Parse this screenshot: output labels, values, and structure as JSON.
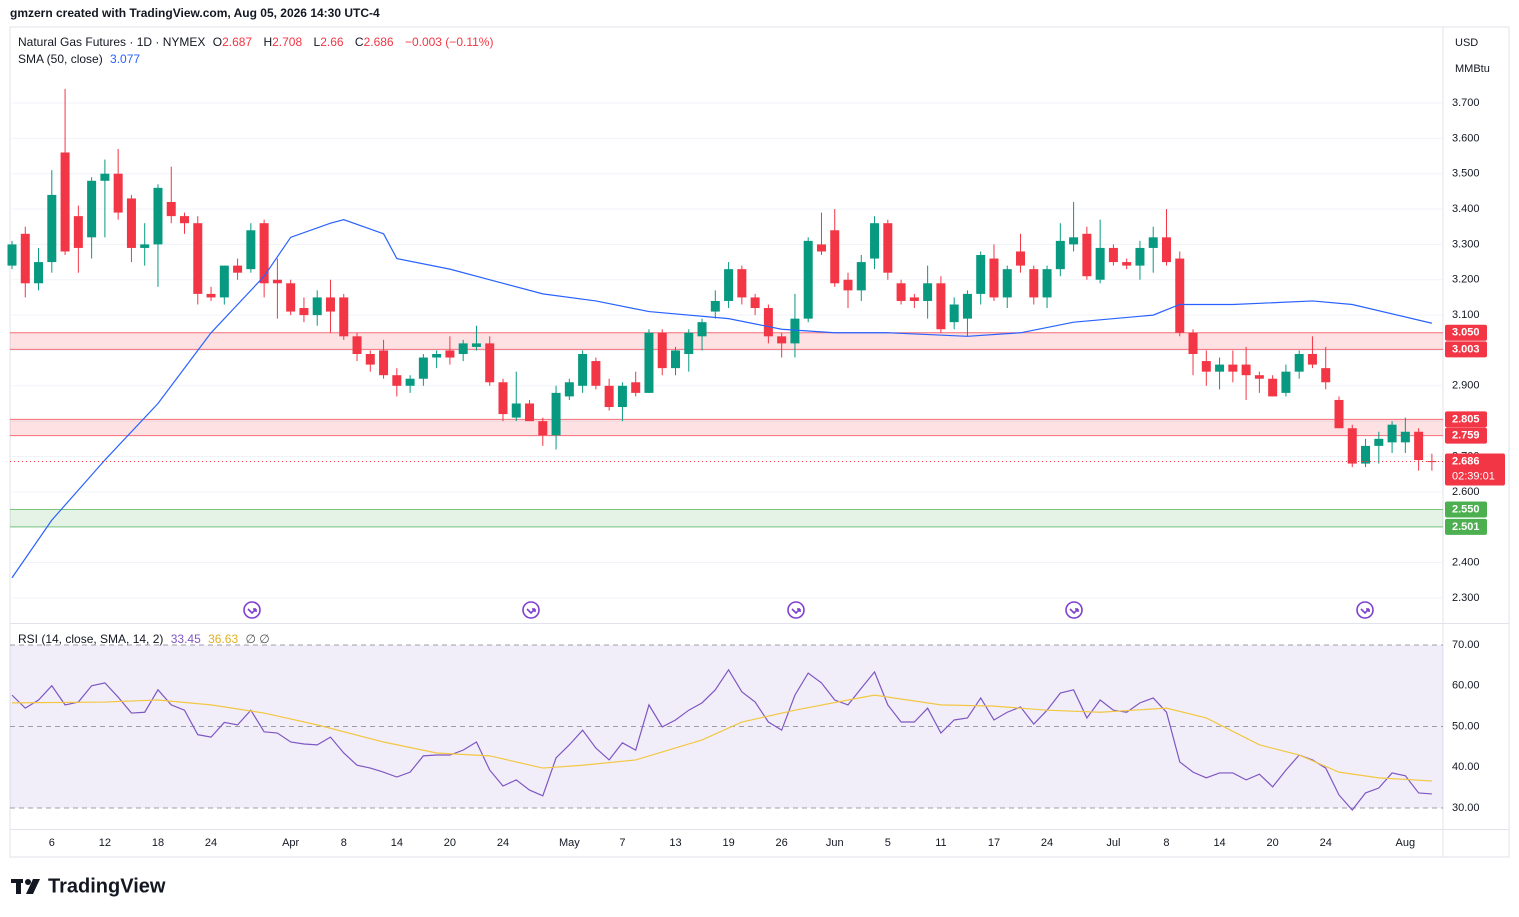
{
  "header": {
    "attribution": "gmzern created with TradingView.com, Aug 05, 2026 14:30 UTC-4",
    "logo": "TradingView"
  },
  "chart_data": [
    {
      "type": "candlestick",
      "title": "Natural Gas Futures · 1D · NYMEX",
      "legend_letters": [
        "O",
        "H",
        "L",
        "C"
      ],
      "change_label": "−0.003 (−0.11%)",
      "currency": "USD",
      "unit": "MMBtu",
      "countdown": "02:39:01",
      "up_color": "#089981",
      "down_color": "#f23645",
      "open": [
        3.24,
        3.33,
        3.19,
        3.25,
        3.56,
        3.38,
        3.32,
        3.48,
        3.5,
        3.43,
        3.29,
        3.3,
        3.42,
        3.38,
        3.36,
        3.16,
        3.15,
        3.24,
        3.23,
        3.36,
        3.2,
        3.19,
        3.12,
        3.1,
        3.15,
        3.15,
        3.04,
        2.99,
        3.0,
        2.93,
        2.9,
        2.92,
        2.98,
        3.0,
        2.99,
        3.01,
        3.02,
        2.91,
        2.81,
        2.85,
        2.8,
        2.76,
        2.87,
        2.9,
        2.97,
        2.9,
        2.84,
        2.91,
        2.88,
        3.05,
        2.95,
        2.99,
        3.04,
        3.11,
        3.14,
        3.23,
        3.15,
        3.12,
        3.04,
        3.02,
        3.09,
        3.3,
        3.34,
        3.2,
        3.17,
        3.26,
        3.36,
        3.19,
        3.15,
        3.14,
        3.19,
        3.08,
        3.09,
        3.16,
        3.26,
        3.15,
        3.28,
        3.23,
        3.15,
        3.23,
        3.3,
        3.33,
        3.2,
        3.29,
        3.25,
        3.24,
        3.29,
        3.32,
        3.26,
        3.05,
        2.97,
        2.94,
        2.96,
        2.96,
        2.93,
        2.92,
        2.88,
        2.94,
        2.99,
        2.95,
        2.86,
        2.78,
        2.68,
        2.73,
        2.74,
        2.74,
        2.77,
        2.687
      ],
      "high": [
        3.31,
        3.35,
        3.29,
        3.51,
        3.74,
        3.41,
        3.49,
        3.54,
        3.57,
        3.44,
        3.36,
        3.47,
        3.52,
        3.39,
        3.38,
        3.18,
        3.24,
        3.26,
        3.36,
        3.37,
        3.26,
        3.2,
        3.15,
        3.17,
        3.2,
        3.16,
        3.05,
        3.0,
        3.03,
        2.95,
        2.93,
        2.99,
        3.0,
        3.04,
        3.03,
        3.07,
        3.04,
        2.92,
        2.94,
        2.86,
        2.81,
        2.9,
        2.92,
        3.0,
        2.98,
        2.92,
        2.91,
        2.94,
        3.06,
        3.06,
        3.01,
        3.06,
        3.09,
        3.17,
        3.25,
        3.24,
        3.16,
        3.13,
        3.05,
        3.16,
        3.32,
        3.39,
        3.4,
        3.22,
        3.27,
        3.38,
        3.37,
        3.2,
        3.16,
        3.24,
        3.21,
        3.15,
        3.17,
        3.28,
        3.3,
        3.24,
        3.33,
        3.24,
        3.24,
        3.36,
        3.42,
        3.35,
        3.37,
        3.3,
        3.26,
        3.31,
        3.35,
        3.4,
        3.28,
        3.06,
        3.0,
        2.98,
        3.0,
        3.01,
        2.94,
        2.93,
        2.96,
        3.0,
        3.04,
        3.01,
        2.87,
        2.79,
        2.75,
        2.77,
        2.8,
        2.81,
        2.78,
        2.708
      ],
      "low": [
        3.23,
        3.15,
        3.17,
        3.22,
        3.27,
        3.22,
        3.26,
        3.32,
        3.37,
        3.25,
        3.24,
        3.18,
        3.36,
        3.33,
        3.13,
        3.14,
        3.13,
        3.2,
        3.22,
        3.15,
        3.09,
        3.1,
        3.08,
        3.07,
        3.05,
        3.03,
        2.97,
        2.94,
        2.92,
        2.87,
        2.88,
        2.9,
        2.95,
        2.96,
        2.97,
        3.0,
        2.9,
        2.8,
        2.8,
        2.8,
        2.73,
        2.72,
        2.86,
        2.88,
        2.89,
        2.83,
        2.8,
        2.87,
        2.88,
        2.93,
        2.93,
        2.94,
        3.0,
        3.09,
        3.12,
        3.13,
        3.1,
        3.02,
        2.98,
        2.98,
        3.08,
        3.27,
        3.18,
        3.12,
        3.14,
        3.23,
        3.2,
        3.13,
        3.12,
        3.09,
        3.05,
        3.06,
        3.04,
        3.13,
        3.14,
        3.12,
        3.22,
        3.13,
        3.12,
        3.21,
        3.28,
        3.2,
        3.19,
        3.24,
        3.23,
        3.2,
        3.22,
        3.24,
        3.04,
        2.93,
        2.9,
        2.89,
        2.91,
        2.86,
        2.88,
        2.87,
        2.87,
        2.92,
        2.95,
        2.89,
        2.78,
        2.67,
        2.67,
        2.68,
        2.71,
        2.71,
        2.66,
        2.66
      ],
      "close": [
        3.3,
        3.19,
        3.25,
        3.44,
        3.28,
        3.29,
        3.48,
        3.5,
        3.39,
        3.29,
        3.3,
        3.46,
        3.38,
        3.36,
        3.16,
        3.15,
        3.24,
        3.22,
        3.34,
        3.19,
        3.19,
        3.11,
        3.1,
        3.15,
        3.11,
        3.04,
        2.99,
        2.96,
        2.93,
        2.9,
        2.92,
        2.98,
        2.99,
        2.98,
        3.02,
        3.02,
        2.91,
        2.82,
        2.85,
        2.8,
        2.76,
        2.88,
        2.91,
        2.99,
        2.9,
        2.84,
        2.9,
        2.88,
        3.05,
        2.95,
        3.0,
        3.05,
        3.08,
        3.14,
        3.23,
        3.15,
        3.12,
        3.04,
        3.02,
        3.09,
        3.31,
        3.28,
        3.19,
        3.17,
        3.25,
        3.36,
        3.22,
        3.14,
        3.14,
        3.19,
        3.06,
        3.13,
        3.16,
        3.27,
        3.15,
        3.23,
        3.24,
        3.15,
        3.23,
        3.31,
        3.32,
        3.21,
        3.29,
        3.25,
        3.24,
        3.29,
        3.32,
        3.25,
        3.05,
        2.99,
        2.94,
        2.96,
        2.94,
        2.93,
        2.92,
        2.87,
        2.94,
        2.99,
        2.96,
        2.91,
        2.78,
        2.68,
        2.73,
        2.75,
        2.79,
        2.77,
        2.69,
        2.686
      ],
      "series": [
        {
          "name": "SMA (50, close)",
          "color": "#2962ff",
          "x": [
            0,
            3,
            7,
            11,
            15,
            17,
            19,
            21,
            24,
            25,
            28,
            29,
            33,
            37,
            40,
            44,
            48,
            54,
            58,
            62,
            66,
            72,
            76,
            80,
            86,
            88,
            92,
            98,
            101,
            107
          ],
          "values": [
            2.357,
            2.52,
            2.69,
            2.85,
            3.05,
            3.13,
            3.21,
            3.32,
            3.36,
            3.37,
            3.33,
            3.26,
            3.23,
            3.19,
            3.16,
            3.14,
            3.11,
            3.09,
            3.06,
            3.05,
            3.05,
            3.04,
            3.05,
            3.08,
            3.1,
            3.13,
            3.13,
            3.14,
            3.13,
            3.077
          ]
        }
      ],
      "zones": [
        {
          "low": {
            "value": 3.003,
            "label": "3.003"
          },
          "high": {
            "value": 3.05,
            "label": "3.050"
          },
          "color": "#f23645"
        },
        {
          "low": {
            "value": 2.759,
            "label": "2.759"
          },
          "high": {
            "value": 2.805,
            "label": "2.805"
          },
          "color": "#f23645"
        },
        {
          "low": {
            "value": 2.501,
            "label": "2.501"
          },
          "high": {
            "value": 2.55,
            "label": "2.550"
          },
          "color": "#4caf50"
        }
      ],
      "ylim": [
        2.229,
        3.915
      ],
      "yticks": [
        {
          "value": 2.3,
          "label": "2.300"
        },
        {
          "value": 2.4,
          "label": "2.400"
        },
        {
          "value": 2.5,
          "label": "2.500"
        },
        {
          "value": 2.6,
          "label": "2.600"
        },
        {
          "value": 2.7,
          "label": "2.700"
        },
        {
          "value": 2.8,
          "label": "2.800"
        },
        {
          "value": 2.9,
          "label": "2.900"
        },
        {
          "value": 3.0,
          "label": "3.000"
        },
        {
          "value": 3.1,
          "label": "3.100"
        },
        {
          "value": 3.2,
          "label": "3.200"
        },
        {
          "value": 3.3,
          "label": "3.300"
        },
        {
          "value": 3.4,
          "label": "3.400"
        },
        {
          "value": 3.5,
          "label": "3.500"
        },
        {
          "value": 3.6,
          "label": "3.600"
        },
        {
          "value": 3.7,
          "label": "3.700"
        }
      ],
      "xticks": [
        {
          "value": 3,
          "label": "6"
        },
        {
          "value": 7,
          "label": "12"
        },
        {
          "value": 11,
          "label": "18"
        },
        {
          "value": 15,
          "label": "24"
        },
        {
          "value": 21,
          "label": "Apr"
        },
        {
          "value": 25,
          "label": "8"
        },
        {
          "value": 29,
          "label": "14"
        },
        {
          "value": 33,
          "label": "20"
        },
        {
          "value": 37,
          "label": "24"
        },
        {
          "value": 42,
          "label": "May"
        },
        {
          "value": 46,
          "label": "7"
        },
        {
          "value": 50,
          "label": "13"
        },
        {
          "value": 54,
          "label": "19"
        },
        {
          "value": 58,
          "label": "26"
        },
        {
          "value": 62,
          "label": "Jun"
        },
        {
          "value": 66,
          "label": "5"
        },
        {
          "value": 70,
          "label": "11"
        },
        {
          "value": 74,
          "label": "17"
        },
        {
          "value": 78,
          "label": "24"
        },
        {
          "value": 83,
          "label": "Jul"
        },
        {
          "value": 87,
          "label": "8"
        },
        {
          "value": 91,
          "label": "14"
        },
        {
          "value": 95,
          "label": "20"
        },
        {
          "value": 99,
          "label": "24"
        },
        {
          "value": 105,
          "label": "Aug"
        }
      ],
      "grid": true
    },
    {
      "type": "line",
      "title": "RSI (14, close, SMA, 14, 2)",
      "extra_legend": "∅ ∅",
      "series": [
        {
          "color": "#7e57c2",
          "values": [
            57.7,
            54.5,
            56.5,
            60,
            55.3,
            56,
            60,
            60.7,
            57.2,
            53.3,
            53.5,
            59,
            55.3,
            54,
            48,
            47.4,
            51,
            50.4,
            54,
            48.7,
            48.4,
            46.2,
            45.7,
            45.5,
            47.4,
            43.5,
            40.5,
            39.8,
            38.8,
            37.6,
            38.8,
            42.8,
            43,
            43,
            44.2,
            46.2,
            39.3,
            35.4,
            36.9,
            34.4,
            33,
            42.3,
            45.5,
            49.1,
            44.7,
            41.8,
            46,
            44.2,
            55.3,
            49.9,
            51.6,
            54,
            55.8,
            59,
            63.9,
            58.5,
            56,
            51.1,
            49.1,
            57.7,
            63.1,
            60.7,
            56.5,
            55.3,
            59.4,
            63.4,
            55.3,
            51.1,
            51.1,
            54.5,
            48.4,
            51.6,
            52.1,
            57,
            51.6,
            53.5,
            54.8,
            50.6,
            54,
            58.2,
            59,
            52.1,
            56.5,
            54,
            53.5,
            55.8,
            57,
            53.5,
            41.3,
            38.8,
            37.4,
            38.6,
            38.6,
            36.9,
            38.3,
            35.2,
            39.3,
            43,
            41.8,
            39.8,
            33.2,
            29.5,
            33.7,
            34.9,
            38.6,
            37.9,
            33.7,
            33.45
          ]
        },
        {
          "color": "#f2c744",
          "x": [
            0,
            7,
            11,
            15,
            19,
            23,
            28,
            32,
            36,
            40,
            43,
            47,
            52,
            55,
            59,
            63,
            65,
            70,
            74,
            78,
            82,
            87,
            90,
            94,
            97,
            100,
            103,
            107
          ],
          "values": [
            55.8,
            56,
            56.5,
            55.3,
            53.3,
            50.4,
            46.2,
            43.5,
            42.8,
            39.8,
            40.5,
            41.8,
            46.7,
            51.1,
            54,
            56.5,
            57.7,
            55.3,
            55,
            54,
            53.5,
            54.5,
            52.1,
            45.5,
            43,
            38.8,
            37.4,
            36.63
          ]
        }
      ],
      "band": [
        30,
        70
      ],
      "dashed_levels": [
        30,
        50,
        70
      ],
      "band_color": "#7e57c2",
      "ylim": [
        24.85,
        75.15
      ],
      "yticks": [
        {
          "value": 30,
          "label": "30.00"
        },
        {
          "value": 40,
          "label": "40.00"
        },
        {
          "value": 50,
          "label": "50.00"
        },
        {
          "value": 60,
          "label": "60.00"
        },
        {
          "value": 70,
          "label": "70.00"
        }
      ]
    }
  ]
}
